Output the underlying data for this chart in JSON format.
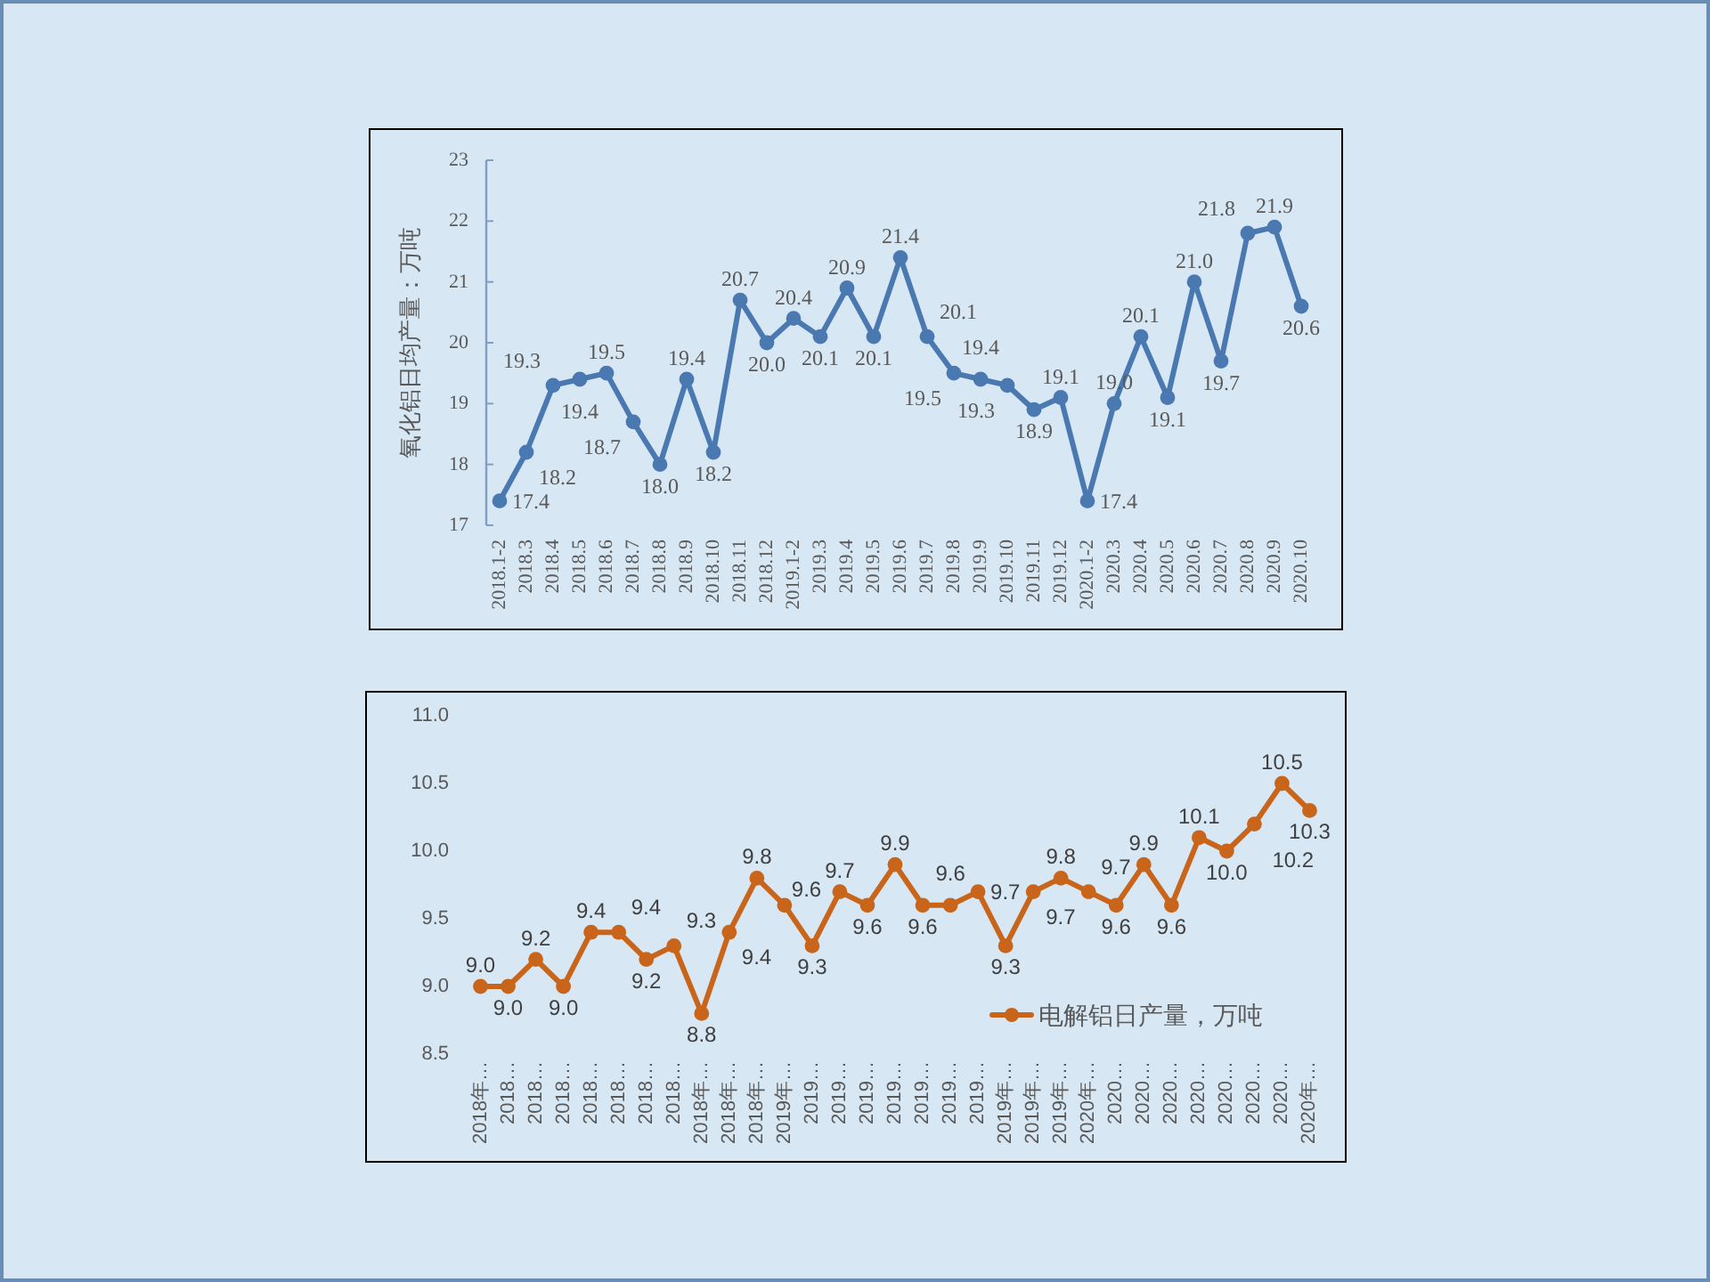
{
  "chart_data": [
    {
      "type": "line",
      "ylabel": "氧化铝日均产量：万吨",
      "categories": [
        "2018.1-2",
        "2018.3",
        "2018.4",
        "2018.5",
        "2018.6",
        "2018.7",
        "2018.8",
        "2018.9",
        "2018.10",
        "2018.11",
        "2018.12",
        "2019.1-2",
        "2019.3",
        "2019.4",
        "2019.5",
        "2019.6",
        "2019.7",
        "2019.8",
        "2019.9",
        "2019.10",
        "2019.11",
        "2019.12",
        "2020.1-2",
        "2020.3",
        "2020.4",
        "2020.5",
        "2020.6",
        "2020.7",
        "2020.8",
        "2020.9",
        "2020.10"
      ],
      "series": [
        {
          "color": "#4a78b0",
          "values": [
            17.4,
            18.2,
            19.3,
            19.4,
            19.5,
            18.7,
            18.0,
            19.4,
            18.2,
            20.7,
            20.0,
            20.4,
            20.1,
            20.9,
            20.1,
            21.4,
            20.1,
            19.5,
            19.4,
            19.3,
            18.9,
            19.1,
            17.4,
            19.0,
            20.1,
            19.1,
            21.0,
            19.7,
            21.8,
            21.9,
            20.6
          ],
          "value_labels": [
            "17.4",
            "18.2",
            "19.3",
            "19.4",
            "19.5",
            "18.7",
            "18.0",
            "19.4",
            "18.2",
            "20.7",
            "20.0",
            "20.4",
            "20.1",
            "20.9",
            "20.1",
            "21.4",
            "20.1",
            "19.5",
            "19.4",
            "19.3",
            "18.9",
            "19.1",
            "17.4",
            "19.0",
            "20.1",
            "19.1",
            "21.0",
            "19.7",
            "21.8",
            "21.9",
            "20.6"
          ]
        }
      ],
      "ylim": [
        17,
        23
      ],
      "yticks": [
        17,
        18,
        19,
        20,
        21,
        22,
        23
      ],
      "marker": "circle"
    },
    {
      "type": "line",
      "categories": [
        "2018年…",
        "2018…",
        "2018…",
        "2018…",
        "2018…",
        "2018…",
        "2018…",
        "2018…",
        "2018年…",
        "2018年…",
        "2018年…",
        "2019年…",
        "2019…",
        "2019…",
        "2019…",
        "2019…",
        "2019…",
        "2019…",
        "2019…",
        "2019年…",
        "2019年…",
        "2019年…",
        "2020年…",
        "2020…",
        "2020…",
        "2020…",
        "2020…",
        "2020…",
        "2020…",
        "2020…",
        "2020年…"
      ],
      "series": [
        {
          "name": "电解铝日产量，万吨",
          "color": "#c8651b",
          "values": [
            9.0,
            9.0,
            9.2,
            9.0,
            9.4,
            9.4,
            9.2,
            9.3,
            8.8,
            9.4,
            9.8,
            9.6,
            9.3,
            9.7,
            9.6,
            9.9,
            9.6,
            9.6,
            9.7,
            9.3,
            9.7,
            9.8,
            9.7,
            9.6,
            9.9,
            9.6,
            10.1,
            10.0,
            10.2,
            10.5,
            10.3
          ],
          "value_labels": [
            "9.0",
            "9.0",
            "9.2",
            "9.0",
            "9.4",
            "9.4",
            "9.2",
            "9.3",
            "8.8",
            "9.4",
            "9.8",
            "9.6",
            "9.3",
            "9.7",
            "9.6",
            "9.9",
            "9.6",
            "9.6",
            "9.7",
            "9.3",
            "9.7",
            "9.8",
            "9.7",
            "9.6",
            "9.9",
            "9.6",
            "10.1",
            "10.0",
            "10.2",
            "10.5",
            "10.3"
          ]
        }
      ],
      "ylim": [
        8.5,
        11
      ],
      "yticks": [
        8.5,
        {
          "value": 9,
          "label": "9.0"
        },
        9.5,
        {
          "value": 10,
          "label": "10.0"
        },
        10.5,
        {
          "value": 11,
          "label": "11.0"
        }
      ],
      "marker": "circle",
      "legend": "bottom right"
    }
  ]
}
